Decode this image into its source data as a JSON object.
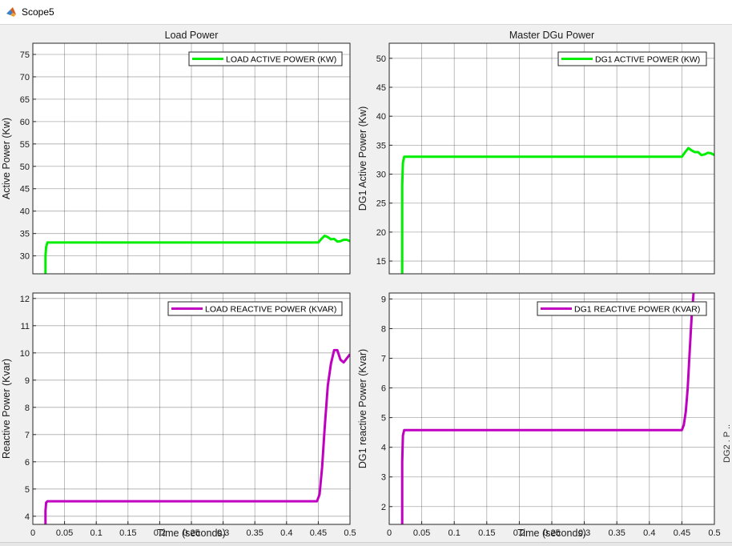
{
  "window": {
    "title": "Scope5"
  },
  "chart_data": [
    {
      "type": "line",
      "title": "Load Power",
      "xlabel": "",
      "ylabel": "Active Power (Kw)",
      "xlim": [
        0,
        0.5
      ],
      "ylim": [
        26,
        77.5
      ],
      "xticks": [],
      "yticks": [
        30,
        35,
        40,
        45,
        50,
        55,
        60,
        65,
        70,
        75
      ],
      "grid": true,
      "legend": "top-right",
      "series": [
        {
          "name": "LOAD ACTIVE POWER (KW)",
          "color": "#00ee00",
          "x": [
            0.02,
            0.02,
            0.021,
            0.023,
            0.03,
            0.1,
            0.2,
            0.3,
            0.4,
            0.45,
            0.455,
            0.46,
            0.465,
            0.47,
            0.475,
            0.48,
            0.485,
            0.49,
            0.495,
            0.5
          ],
          "y": [
            26,
            30,
            32,
            33,
            33,
            33,
            33,
            33,
            33,
            33,
            33.8,
            34.5,
            34.2,
            33.7,
            33.8,
            33.2,
            33.3,
            33.6,
            33.6,
            33.3
          ]
        }
      ]
    },
    {
      "type": "line",
      "title": "Master DGu Power",
      "xlabel": "",
      "ylabel": "DG1 Active Power (Kw)",
      "xlim": [
        0,
        0.5
      ],
      "ylim": [
        12.8,
        52.6
      ],
      "xticks": [],
      "yticks": [
        15,
        20,
        25,
        30,
        35,
        40,
        45,
        50
      ],
      "grid": true,
      "legend": "top-right",
      "series": [
        {
          "name": "DG1 ACTIVE POWER (KW)",
          "color": "#00ee00",
          "x": [
            0.02,
            0.02,
            0.021,
            0.023,
            0.03,
            0.1,
            0.2,
            0.3,
            0.4,
            0.45,
            0.455,
            0.46,
            0.465,
            0.47,
            0.475,
            0.48,
            0.485,
            0.49,
            0.495,
            0.5
          ],
          "y": [
            12.8,
            28,
            32,
            33,
            33,
            33,
            33,
            33,
            33,
            33,
            33.8,
            34.5,
            34.1,
            33.8,
            33.8,
            33.3,
            33.4,
            33.7,
            33.6,
            33.3
          ]
        }
      ]
    },
    {
      "type": "line",
      "title": "",
      "xlabel": "Time (seconds)",
      "ylabel": "Reactive Power (Kvar)",
      "xlim": [
        0,
        0.5
      ],
      "ylim": [
        3.7,
        12.2
      ],
      "xticks": [
        "0",
        "0.05",
        "0.1",
        "0.15",
        "0.2",
        "0.25",
        "0.3",
        "0.35",
        "0.4",
        "0.45",
        "0.5"
      ],
      "yticks": [
        4,
        5,
        6,
        7,
        8,
        9,
        10,
        11,
        12
      ],
      "grid": true,
      "legend": "top-right",
      "series": [
        {
          "name": "LOAD REACTIVE POWER (KVAR)",
          "color": "#c000c0",
          "x": [
            0.02,
            0.02,
            0.021,
            0.023,
            0.03,
            0.1,
            0.2,
            0.3,
            0.4,
            0.448,
            0.452,
            0.456,
            0.46,
            0.465,
            0.47,
            0.475,
            0.48,
            0.485,
            0.49,
            0.495,
            0.5
          ],
          "y": [
            3.7,
            4.2,
            4.5,
            4.55,
            4.55,
            4.55,
            4.55,
            4.55,
            4.55,
            4.55,
            4.8,
            5.8,
            7.2,
            8.8,
            9.6,
            10.1,
            10.1,
            9.75,
            9.65,
            9.8,
            9.95
          ]
        }
      ]
    },
    {
      "type": "line",
      "title": "",
      "xlabel": "Time (seconds)",
      "ylabel": "DG1 reactive Power (Kvar)",
      "xlim": [
        0,
        0.5
      ],
      "ylim": [
        1.4,
        9.2
      ],
      "xticks": [
        "0",
        "0.05",
        "0.1",
        "0.15",
        "0.2",
        "0.25",
        "0.3",
        "0.35",
        "0.4",
        "0.45",
        "0.5"
      ],
      "yticks": [
        2,
        3,
        4,
        5,
        6,
        7,
        8,
        9
      ],
      "grid": true,
      "legend": "top-right",
      "series": [
        {
          "name": "DG1 REACTIVE POWER (KVAR)",
          "color": "#c000c0",
          "x": [
            0.02,
            0.02,
            0.021,
            0.023,
            0.03,
            0.1,
            0.2,
            0.3,
            0.4,
            0.45,
            0.453,
            0.456,
            0.459,
            0.462,
            0.465,
            0.468
          ],
          "y": [
            1.4,
            3.5,
            4.4,
            4.58,
            4.58,
            4.58,
            4.58,
            4.58,
            4.58,
            4.58,
            4.75,
            5.2,
            6.0,
            7.2,
            8.4,
            9.2
          ]
        }
      ]
    }
  ]
}
